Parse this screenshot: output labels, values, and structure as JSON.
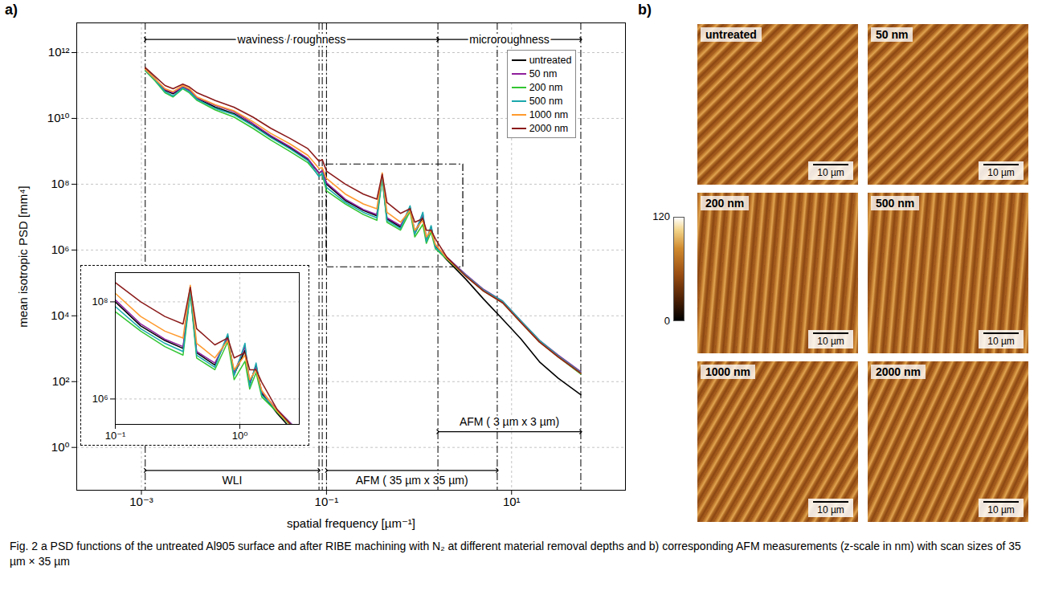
{
  "chart_data": {
    "type": "line",
    "panel_label": "a)",
    "xlabel": "spatial frequency [µm⁻¹]",
    "ylabel": "mean isotropic PSD [mm⁴]",
    "log": true,
    "grid": true,
    "legend": "top-right",
    "xlim": [
      0.0002,
      170
    ],
    "ylim": [
      0.05,
      8000000000000.0
    ],
    "xticks": [
      {
        "value": 0.001,
        "label": "10⁻³"
      },
      {
        "value": 0.1,
        "label": "10⁻¹"
      },
      {
        "value": 10,
        "label": "10¹"
      }
    ],
    "yticks": [
      {
        "value": 1,
        "label": "10⁰"
      },
      {
        "value": 100,
        "label": "10²"
      },
      {
        "value": 10000,
        "label": "10⁴"
      },
      {
        "value": 1000000,
        "label": "10⁶"
      },
      {
        "value": 100000000,
        "label": "10⁸"
      },
      {
        "value": 10000000000,
        "label": "10¹⁰"
      },
      {
        "value": 1000000000000,
        "label": "10¹²"
      }
    ],
    "x": [
      0.0011,
      0.0014,
      0.0018,
      0.0022,
      0.0028,
      0.0033,
      0.004,
      0.0063,
      0.01,
      0.016,
      0.025,
      0.04,
      0.063,
      0.083,
      0.09,
      0.1,
      0.16,
      0.25,
      0.35,
      0.4,
      0.45,
      0.63,
      0.8,
      0.9,
      1.1,
      1.2,
      1.35,
      1.5,
      2,
      3.2,
      5,
      8,
      12.6,
      20,
      32,
      56
    ],
    "series": [
      {
        "name": "untreated",
        "color": "#000000",
        "values": [
          320000000000.0,
          160000000000.0,
          71000000000.0,
          56000000000.0,
          89000000000.0,
          71000000000.0,
          40000000000.0,
          22000000000.0,
          14000000000.0,
          6300000000.0,
          2800000000.0,
          1300000000.0,
          560000000.0,
          220000000.0,
          250000000.0,
          100000000.0,
          32000000.0,
          16000000.0,
          11000000.0,
          160000000.0,
          8900000.0,
          5000000.0,
          20000000.0,
          3200000.0,
          10000000.0,
          2000000.0,
          5000000.0,
          1300000.0,
          500000.0,
          130000.0,
          32000.0,
          7900.0,
          2000.0,
          400,
          126,
          40
        ]
      },
      {
        "name": "50 nm",
        "color": "#8e1f9c",
        "values": [
          300000000000.0,
          150000000000.0,
          75000000000.0,
          60000000000.0,
          90000000000.0,
          70000000000.0,
          42000000000.0,
          25000000000.0,
          16000000000.0,
          7000000000.0,
          3000000000.0,
          1400000000.0,
          600000000.0,
          220000000.0,
          260000000.0,
          110000000.0,
          35000000.0,
          17000000.0,
          12000000.0,
          170000000.0,
          9500000.0,
          5500000.0,
          18000000.0,
          3500000.0,
          12000000.0,
          2200000.0,
          4500000.0,
          1400000.0,
          600000.0,
          180000.0,
          63000.0,
          28000.0,
          7000.0,
          1800.0,
          630,
          200
        ]
      },
      {
        "name": "200 nm",
        "color": "#33c633",
        "values": [
          280000000000.0,
          140000000000.0,
          60000000000.0,
          45000000000.0,
          80000000000.0,
          60000000000.0,
          35000000000.0,
          18000000000.0,
          11000000000.0,
          5000000000.0,
          2200000000.0,
          1000000000.0,
          450000000.0,
          180000000.0,
          200000000.0,
          63000000.0,
          25000000.0,
          12000000.0,
          8000000.0,
          150000000.0,
          7000000.0,
          4000000.0,
          15000000.0,
          2500000.0,
          6000000.0,
          1600000.0,
          3500000.0,
          1100000.0,
          530000.0,
          160000.0,
          56000.0,
          25000.0,
          6300.0,
          1600.0,
          560,
          170
        ]
      },
      {
        "name": "500 nm",
        "color": "#1aa8ad",
        "values": [
          290000000000.0,
          150000000000.0,
          65000000000.0,
          48000000000.0,
          85000000000.0,
          65000000000.0,
          38000000000.0,
          20000000000.0,
          13000000000.0,
          6000000000.0,
          2600000000.0,
          1200000000.0,
          520000000.0,
          170000000.0,
          220000000.0,
          80000000.0,
          28000000.0,
          14000000.0,
          9500000.0,
          170000000.0,
          8000000.0,
          4500000.0,
          22000000.0,
          3000000.0,
          14000000.0,
          1800000.0,
          5500000.0,
          1200000.0,
          580000.0,
          170000.0,
          60000.0,
          28000.0,
          7000.0,
          1800.0,
          600,
          190
        ]
      },
      {
        "name": "1000 nm",
        "color": "#ff9a2e",
        "values": [
          310000000000.0,
          160000000000.0,
          80000000000.0,
          65000000000.0,
          100000000000.0,
          80000000000.0,
          45000000000.0,
          26000000000.0,
          17000000000.0,
          8000000000.0,
          3500000000.0,
          1700000000.0,
          750000000.0,
          300000000.0,
          320000000.0,
          150000000.0,
          50000000.0,
          25000000.0,
          18000000.0,
          220000000.0,
          14000000.0,
          7000000.0,
          16000000.0,
          4000000.0,
          8000000.0,
          2500000.0,
          4000000.0,
          1500000.0,
          560000.0,
          160000.0,
          56000.0,
          25000.0,
          6300.0,
          1600.0,
          560,
          180
        ]
      },
      {
        "name": "2000 nm",
        "color": "#8b1a1a",
        "values": [
          350000000000.0,
          190000000000.0,
          100000000000.0,
          80000000000.0,
          110000000000.0,
          90000000000.0,
          60000000000.0,
          35000000000.0,
          22000000000.0,
          11000000000.0,
          5000000000.0,
          2500000000.0,
          1200000000.0,
          500000000.0,
          560000000.0,
          250000000.0,
          100000000.0,
          50000000.0,
          35000000.0,
          200000000.0,
          28000000.0,
          13000000.0,
          18000000.0,
          7000000.0,
          9000000.0,
          4000000.0,
          4000000.0,
          2200000.0,
          600000.0,
          160000.0,
          56000.0,
          25000.0,
          6300.0,
          1600.0,
          560,
          180
        ]
      }
    ],
    "boundaries": [
      0.0011,
      0.083,
      0.09,
      0.1,
      1.6,
      7,
      56
    ],
    "annotations": [
      {
        "text": "waviness / roughness",
        "x1": 0.0011,
        "x2": 1.6,
        "y": 2500000000000.0
      },
      {
        "text": "microroughness",
        "x1": 1.6,
        "x2": 56,
        "y": 2500000000000.0
      },
      {
        "text": "WLI",
        "x1": 0.0011,
        "x2": 0.083,
        "y": 0.2
      },
      {
        "text": "AFM ( 35 µm x 35 µm)",
        "x1": 0.1,
        "x2": 7,
        "y": 0.2
      },
      {
        "text": "AFM ( 3 µm x 3 µm)",
        "x1": 1.6,
        "x2": 56,
        "y": 3
      }
    ],
    "inset": {
      "xlim": [
        0.1,
        3
      ],
      "ylim": [
        300000,
        400000000
      ],
      "xticks": [
        {
          "value": 0.1,
          "label": "10⁻¹"
        },
        {
          "value": 1,
          "label": "10⁰"
        }
      ],
      "yticks": [
        {
          "value": 1000000,
          "label": "10⁶"
        },
        {
          "value": 100000000,
          "label": "10⁸"
        }
      ]
    }
  },
  "afm": {
    "panel_label": "b)",
    "colorbar": {
      "range": [
        0,
        120
      ],
      "ticks": [
        0,
        120
      ]
    },
    "scale_bar": "10 µm",
    "images": [
      "untreated",
      "50 nm",
      "200 nm",
      "500 nm",
      "1000 nm",
      "2000 nm"
    ]
  },
  "caption": "Fig. 2 a PSD functions of the untreated Al905 surface and after RIBE machining with N₂ at different material removal depths and b) corresponding AFM measurements (z-scale in nm) with scan sizes of 35 µm × 35 µm"
}
